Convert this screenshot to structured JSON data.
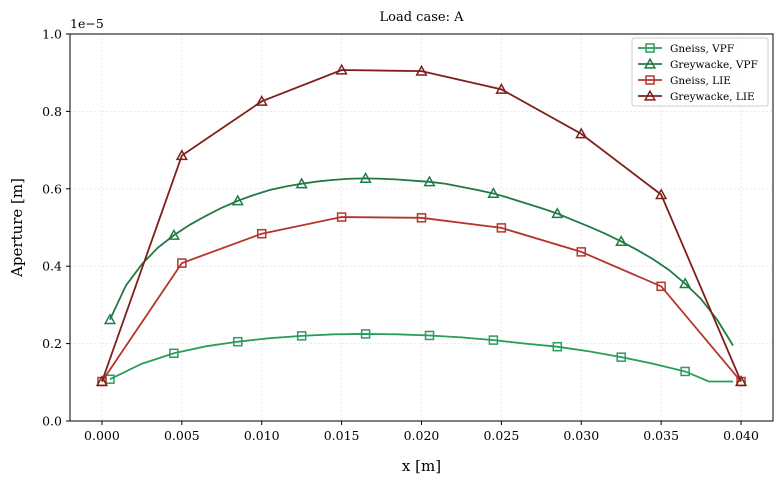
{
  "chart_data": {
    "type": "line",
    "title": "Load case: A",
    "xlabel": "x [m]",
    "ylabel": "Aperture [m]",
    "y_offset_text": "1e−5",
    "xlim": [
      -0.002,
      0.042
    ],
    "ylim": [
      0.0,
      1.0
    ],
    "xticks": [
      0.0,
      0.005,
      0.01,
      0.015,
      0.02,
      0.025,
      0.03,
      0.035,
      0.04
    ],
    "xtick_labels": [
      "0.000",
      "0.005",
      "0.010",
      "0.015",
      "0.020",
      "0.025",
      "0.030",
      "0.035",
      "0.040"
    ],
    "yticks": [
      0.0,
      0.2,
      0.4,
      0.6,
      0.8,
      1.0
    ],
    "ytick_labels": [
      "0.0",
      "0.2",
      "0.4",
      "0.6",
      "0.8",
      "1.0"
    ],
    "grid": true,
    "legend_position": "top-right",
    "series": [
      {
        "name": "Gneiss, VPF",
        "color": "#2a9d5c",
        "marker": "square",
        "x": [
          0.0005,
          0.0025,
          0.0045,
          0.0065,
          0.0085,
          0.0105,
          0.0125,
          0.0145,
          0.0165,
          0.0185,
          0.0205,
          0.0225,
          0.0245,
          0.0265,
          0.0285,
          0.0305,
          0.0325,
          0.0345,
          0.0365,
          0.038,
          0.0395
        ],
        "y": [
          0.108,
          0.148,
          0.175,
          0.193,
          0.205,
          0.214,
          0.22,
          0.224,
          0.225,
          0.224,
          0.221,
          0.216,
          0.209,
          0.2,
          0.192,
          0.18,
          0.165,
          0.148,
          0.128,
          0.102,
          0.102
        ],
        "marker_x": [
          0.0005,
          0.0045,
          0.0085,
          0.0125,
          0.0165,
          0.0205,
          0.0245,
          0.0285,
          0.0325,
          0.0365
        ],
        "marker_y": [
          0.108,
          0.175,
          0.205,
          0.22,
          0.225,
          0.221,
          0.209,
          0.192,
          0.165,
          0.128
        ]
      },
      {
        "name": "Greywacke, VPF",
        "color": "#1f7a45",
        "marker": "triangle",
        "x": [
          0.0005,
          0.0015,
          0.0025,
          0.0035,
          0.0045,
          0.0055,
          0.0065,
          0.0075,
          0.0085,
          0.0095,
          0.0105,
          0.0115,
          0.0125,
          0.0135,
          0.0145,
          0.0155,
          0.0165,
          0.0175,
          0.0185,
          0.0195,
          0.0205,
          0.0215,
          0.0225,
          0.0235,
          0.0245,
          0.0255,
          0.0265,
          0.0275,
          0.0285,
          0.0295,
          0.0305,
          0.0315,
          0.0325,
          0.0335,
          0.0345,
          0.0355,
          0.0365,
          0.0375,
          0.0385,
          0.0395
        ],
        "y": [
          0.262,
          0.35,
          0.405,
          0.448,
          0.48,
          0.507,
          0.53,
          0.551,
          0.569,
          0.584,
          0.597,
          0.606,
          0.613,
          0.619,
          0.623,
          0.626,
          0.627,
          0.626,
          0.624,
          0.621,
          0.618,
          0.613,
          0.605,
          0.597,
          0.588,
          0.576,
          0.563,
          0.55,
          0.536,
          0.519,
          0.502,
          0.484,
          0.464,
          0.442,
          0.418,
          0.39,
          0.355,
          0.315,
          0.262,
          0.195
        ],
        "marker_x": [
          0.0005,
          0.0045,
          0.0085,
          0.0125,
          0.0165,
          0.0205,
          0.0245,
          0.0285,
          0.0325,
          0.0365
        ],
        "marker_y": [
          0.262,
          0.48,
          0.569,
          0.613,
          0.627,
          0.618,
          0.588,
          0.536,
          0.464,
          0.355
        ]
      },
      {
        "name": "Gneiss, LIE",
        "color": "#b5352b",
        "marker": "square",
        "x": [
          0.0,
          0.005,
          0.01,
          0.015,
          0.02,
          0.025,
          0.03,
          0.035,
          0.04
        ],
        "y": [
          0.102,
          0.408,
          0.484,
          0.527,
          0.525,
          0.499,
          0.437,
          0.348,
          0.102
        ],
        "marker_x": [
          0.0,
          0.005,
          0.01,
          0.015,
          0.02,
          0.025,
          0.03,
          0.035,
          0.04
        ],
        "marker_y": [
          0.102,
          0.408,
          0.484,
          0.527,
          0.525,
          0.499,
          0.437,
          0.348,
          0.102
        ]
      },
      {
        "name": "Greywacke, LIE",
        "color": "#7f1f1a",
        "marker": "triangle",
        "x": [
          0.0,
          0.005,
          0.01,
          0.015,
          0.02,
          0.025,
          0.03,
          0.035,
          0.04
        ],
        "y": [
          0.102,
          0.686,
          0.826,
          0.907,
          0.904,
          0.857,
          0.742,
          0.585,
          0.102
        ],
        "marker_x": [
          0.0,
          0.005,
          0.01,
          0.015,
          0.02,
          0.025,
          0.03,
          0.035,
          0.04
        ],
        "marker_y": [
          0.102,
          0.686,
          0.826,
          0.907,
          0.904,
          0.857,
          0.742,
          0.585,
          0.102
        ]
      }
    ]
  }
}
